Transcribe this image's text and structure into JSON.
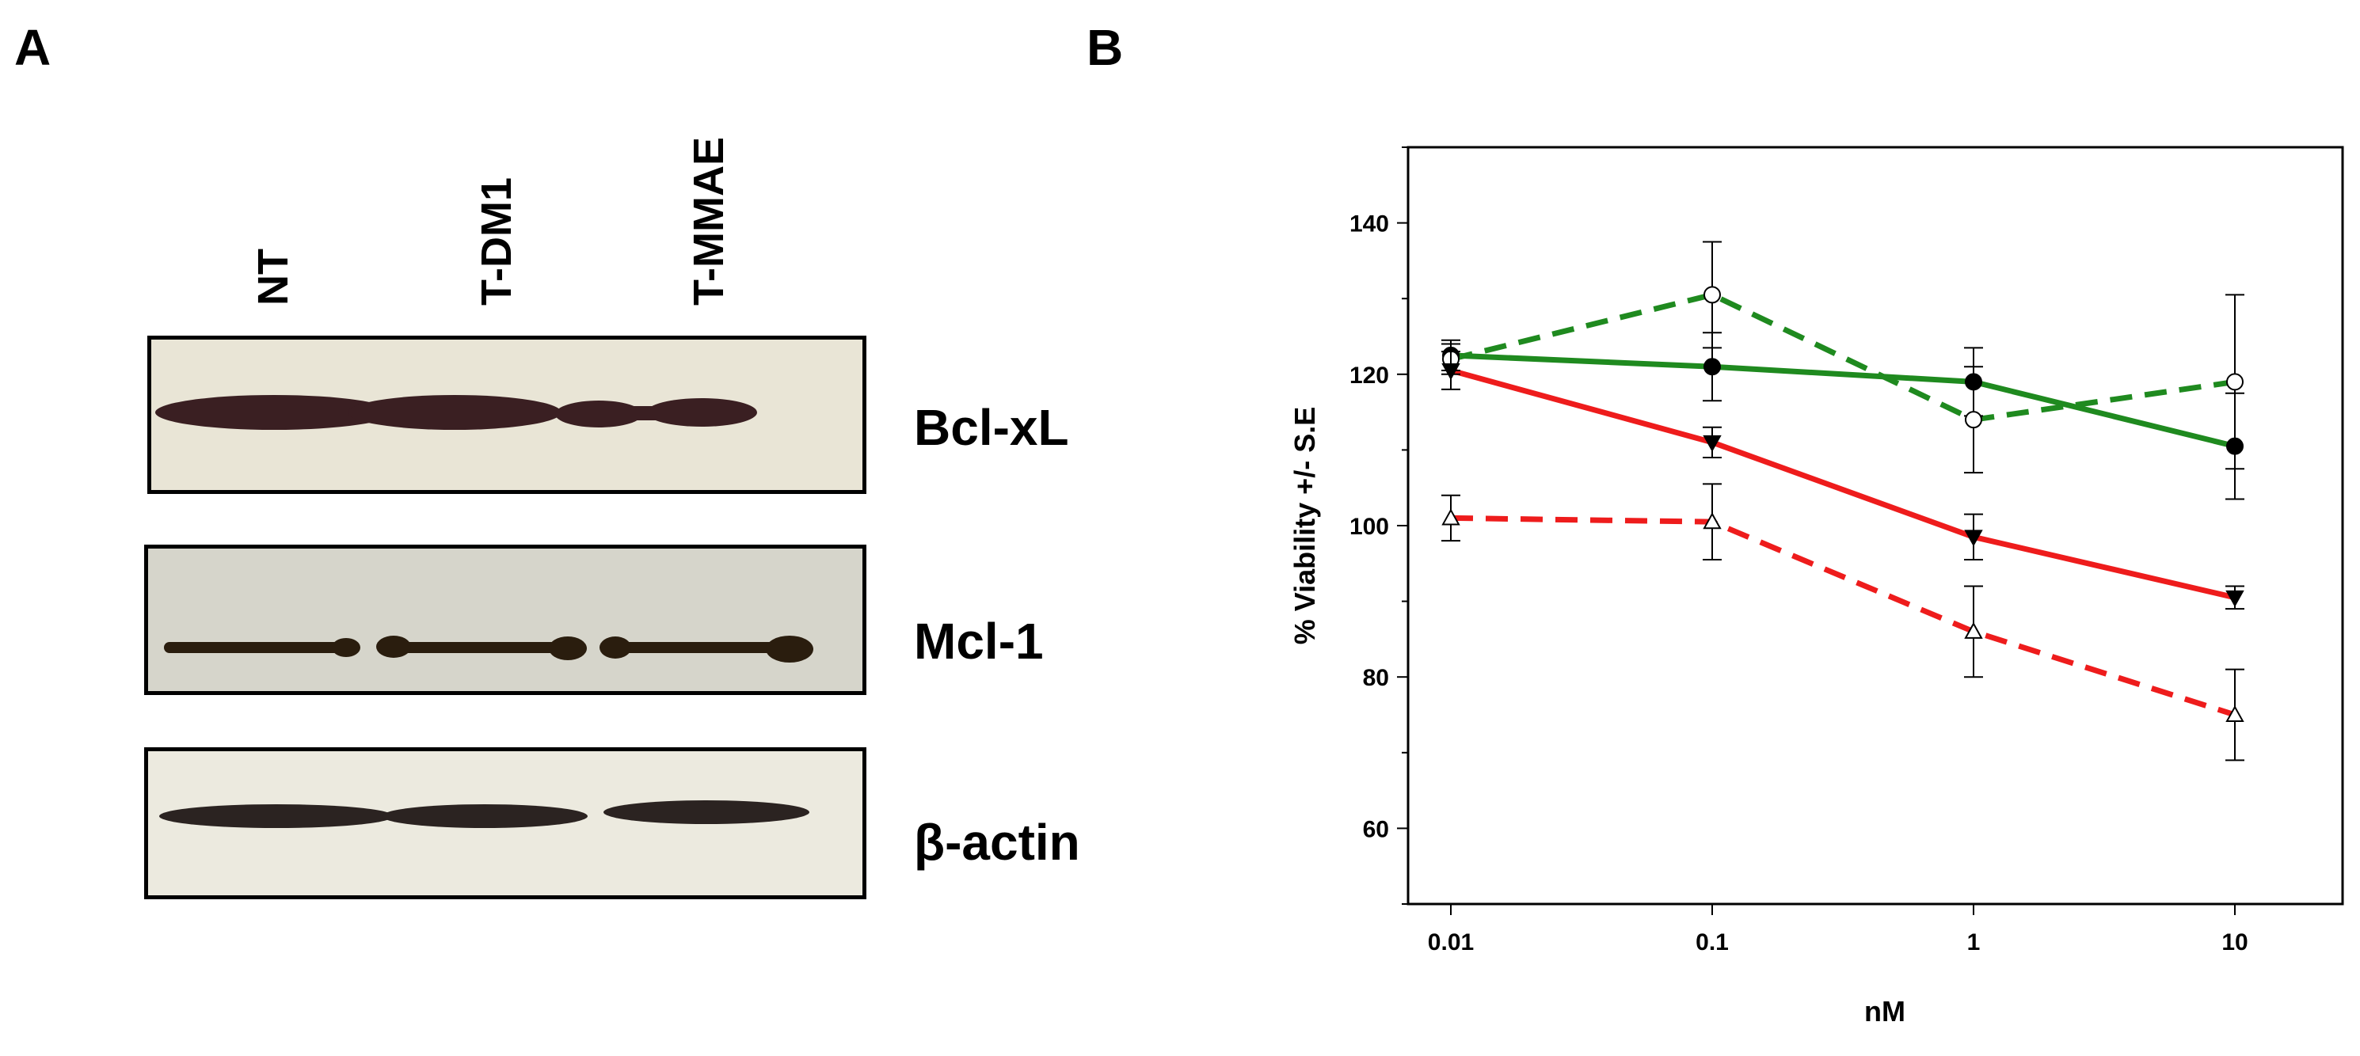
{
  "panel_a": {
    "letter": "A",
    "lanes": [
      "NT",
      "T-DM1",
      "T-MMAE"
    ],
    "blots": [
      {
        "protein": "Bcl-xL",
        "background": "#e9e5d6",
        "band_color": "#3a1f22"
      },
      {
        "protein": "Mcl-1",
        "background": "#d6d5cb",
        "band_color": "#2a1d0e"
      },
      {
        "protein": "β-actin",
        "background": "#eceadf",
        "band_color": "#2b2321"
      }
    ]
  },
  "panel_b": {
    "letter": "B"
  },
  "chart_data": {
    "type": "line",
    "xscale": "log",
    "x": [
      0.01,
      0.1,
      1,
      10
    ],
    "x_tick_labels": [
      "0.01",
      "0.1",
      "1",
      "10"
    ],
    "xlabel": "nM",
    "ylabel": "% Viability +/- S.E",
    "ylim": [
      50,
      150
    ],
    "y_ticks": [
      60,
      80,
      100,
      120,
      140
    ],
    "grid": false,
    "series": [
      {
        "name": "green solid, filled circle",
        "color": "#1f8a1f",
        "dash": "solid",
        "marker": "filled-circle",
        "values": [
          122.5,
          121,
          119,
          110.5
        ],
        "errors": [
          2,
          4.5,
          4.5,
          7
        ]
      },
      {
        "name": "green dashed, open circle",
        "color": "#1f8a1f",
        "dash": "dashed",
        "marker": "open-circle",
        "values": [
          122,
          130.5,
          114,
          119
        ],
        "errors": [
          2,
          7,
          7,
          11.5
        ]
      },
      {
        "name": "red solid, filled triangle",
        "color": "#ee1c1c",
        "dash": "solid",
        "marker": "filled-triangle-down",
        "values": [
          120.5,
          111,
          98.5,
          90.5
        ],
        "errors": [
          2.5,
          2,
          3,
          1.5
        ]
      },
      {
        "name": "red dashed, open triangle",
        "color": "#ee1c1c",
        "dash": "dashed",
        "marker": "open-triangle-up",
        "values": [
          101,
          100.5,
          86,
          75
        ],
        "errors": [
          3,
          5,
          6,
          6
        ]
      }
    ]
  }
}
